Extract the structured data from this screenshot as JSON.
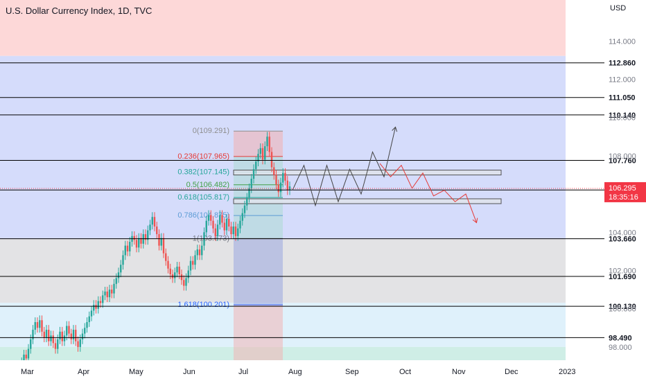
{
  "header": {
    "symbol_title": "U.S. Dollar Currency Index, 1D, TVC",
    "currency": "USD"
  },
  "price_badge": {
    "price": "106.295",
    "countdown": "18:35:16",
    "color": "#f23645"
  },
  "colors": {
    "up": "#26a69a",
    "down": "#ef5350",
    "band_red": "#fdd8d8",
    "band_blue": "#d5dcfb",
    "band_gray": "#e3e3e5",
    "band_lightblue": "#dff1fb",
    "band_teal": "#cfeee6"
  },
  "chart_data": {
    "type": "candlestick",
    "title": "U.S. Dollar Currency Index, 1D, TVC",
    "x_ticks": [
      "Mar",
      "Apr",
      "May",
      "Jun",
      "Jul",
      "Aug",
      "Sep",
      "Oct",
      "Nov",
      "Dec",
      "2023"
    ],
    "y_ticks": [
      98.0,
      100.0,
      102.0,
      104.0,
      106.0,
      108.0,
      110.0,
      112.0,
      114.0
    ],
    "ylim": [
      96.8,
      114.5
    ],
    "horizontal_levels": [
      112.86,
      111.05,
      110.14,
      107.76,
      106.21,
      103.66,
      101.69,
      100.13,
      98.49,
      97.106
    ],
    "last_price": 106.295,
    "fibonacci": [
      {
        "label": "0(109.291)",
        "ratio": 0,
        "price": 109.291
      },
      {
        "label": "0.236(107.965)",
        "ratio": 0.236,
        "price": 107.965
      },
      {
        "label": "0.382(107.145)",
        "ratio": 0.382,
        "price": 107.145
      },
      {
        "label": "0.5(106.482)",
        "ratio": 0.5,
        "price": 106.482
      },
      {
        "label": "0.618(105.817)",
        "ratio": 0.618,
        "price": 105.817
      },
      {
        "label": "0.786(104.875)",
        "ratio": 0.786,
        "price": 104.875
      },
      {
        "label": "1(103.673)",
        "ratio": 1,
        "price": 103.673
      },
      {
        "label": "1.618(100.201)",
        "ratio": 1.618,
        "price": 100.201
      }
    ],
    "candle_closes": [
      96.8,
      97.2,
      97.6,
      97.4,
      97.9,
      98.4,
      98.9,
      99.3,
      99.0,
      99.4,
      98.8,
      98.5,
      98.9,
      98.3,
      98.6,
      98.2,
      97.9,
      98.4,
      98.8,
      98.3,
      98.6,
      99.1,
      98.7,
      98.4,
      98.9,
      98.3,
      98.0,
      98.4,
      98.7,
      99.0,
      99.3,
      99.6,
      99.9,
      100.2,
      100.0,
      100.4,
      100.3,
      100.7,
      100.9,
      100.6,
      101.0,
      100.8,
      101.3,
      101.6,
      101.9,
      102.3,
      102.8,
      103.3,
      103.0,
      103.5,
      103.8,
      103.6,
      103.2,
      103.7,
      103.4,
      103.9,
      103.6,
      104.1,
      104.4,
      104.8,
      104.3,
      103.9,
      103.3,
      103.7,
      102.9,
      102.5,
      102.1,
      101.8,
      101.6,
      101.9,
      102.2,
      101.8,
      101.5,
      101.2,
      101.6,
      102.0,
      102.5,
      102.3,
      102.8,
      103.1,
      102.8,
      103.3,
      104.0,
      104.6,
      104.9,
      104.6,
      104.2,
      103.8,
      104.4,
      104.9,
      104.5,
      104.1,
      104.7,
      104.3,
      103.9,
      104.3,
      103.8,
      104.2,
      104.6,
      105.0,
      105.4,
      105.8,
      106.3,
      106.8,
      107.3,
      107.7,
      108.1,
      108.4,
      107.8,
      108.5,
      109.0,
      108.2,
      107.4,
      107.0,
      106.5,
      106.1,
      106.6,
      107.1,
      106.7,
      106.2,
      106.4
    ]
  },
  "projection": {
    "black_path": [
      [
        106.2,
        0
      ],
      [
        107.5,
        1
      ],
      [
        105.4,
        2
      ],
      [
        107.5,
        3
      ],
      [
        105.6,
        4
      ],
      [
        107.3,
        5
      ],
      [
        106.0,
        6
      ],
      [
        108.2,
        7
      ],
      [
        106.9,
        8
      ],
      [
        109.5,
        9
      ]
    ],
    "red_path": [
      [
        107.6,
        0
      ],
      [
        106.9,
        1
      ],
      [
        107.5,
        2
      ],
      [
        106.3,
        3
      ],
      [
        107.1,
        4
      ],
      [
        105.9,
        5
      ],
      [
        106.2,
        6
      ],
      [
        105.6,
        7
      ],
      [
        106.0,
        8
      ],
      [
        104.5,
        9
      ]
    ]
  }
}
